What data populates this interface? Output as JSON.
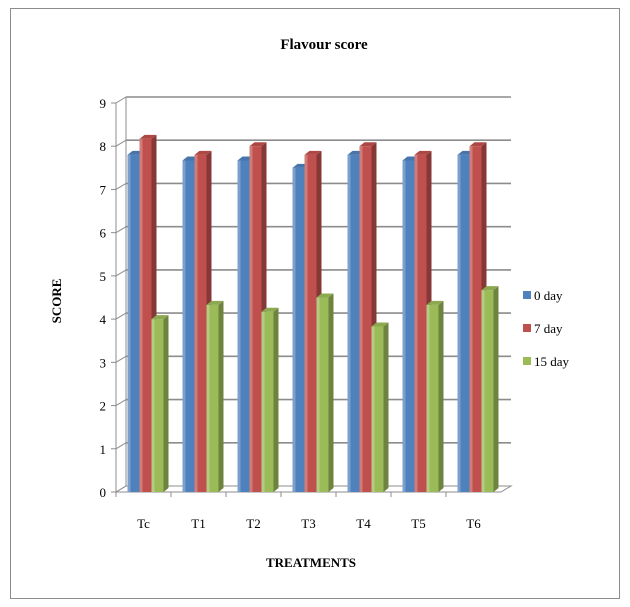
{
  "chart_data": {
    "type": "bar",
    "title": "Flavour score",
    "xlabel": "TREATMENTS",
    "ylabel": "SCORE",
    "categories": [
      "Tc",
      "T1",
      "T2",
      "T3",
      "T4",
      "T5",
      "T6"
    ],
    "ylim": [
      0,
      9
    ],
    "yticks": [
      "0",
      "1",
      "2",
      "3",
      "4",
      "5",
      "6",
      "7",
      "8",
      "9"
    ],
    "grid": true,
    "legend_position": "right",
    "series": [
      {
        "name": "0 day",
        "color": "#4f81bd",
        "values": [
          7.8,
          7.67,
          7.67,
          7.5,
          7.8,
          7.67,
          7.8
        ]
      },
      {
        "name": "7 day",
        "color": "#c0504d",
        "values": [
          8.17,
          7.8,
          8.0,
          7.8,
          8.0,
          7.8,
          8.0
        ]
      },
      {
        "name": "15 day",
        "color": "#9bbb59",
        "values": [
          4.0,
          4.33,
          4.17,
          4.5,
          3.83,
          4.33,
          4.67
        ]
      }
    ]
  }
}
